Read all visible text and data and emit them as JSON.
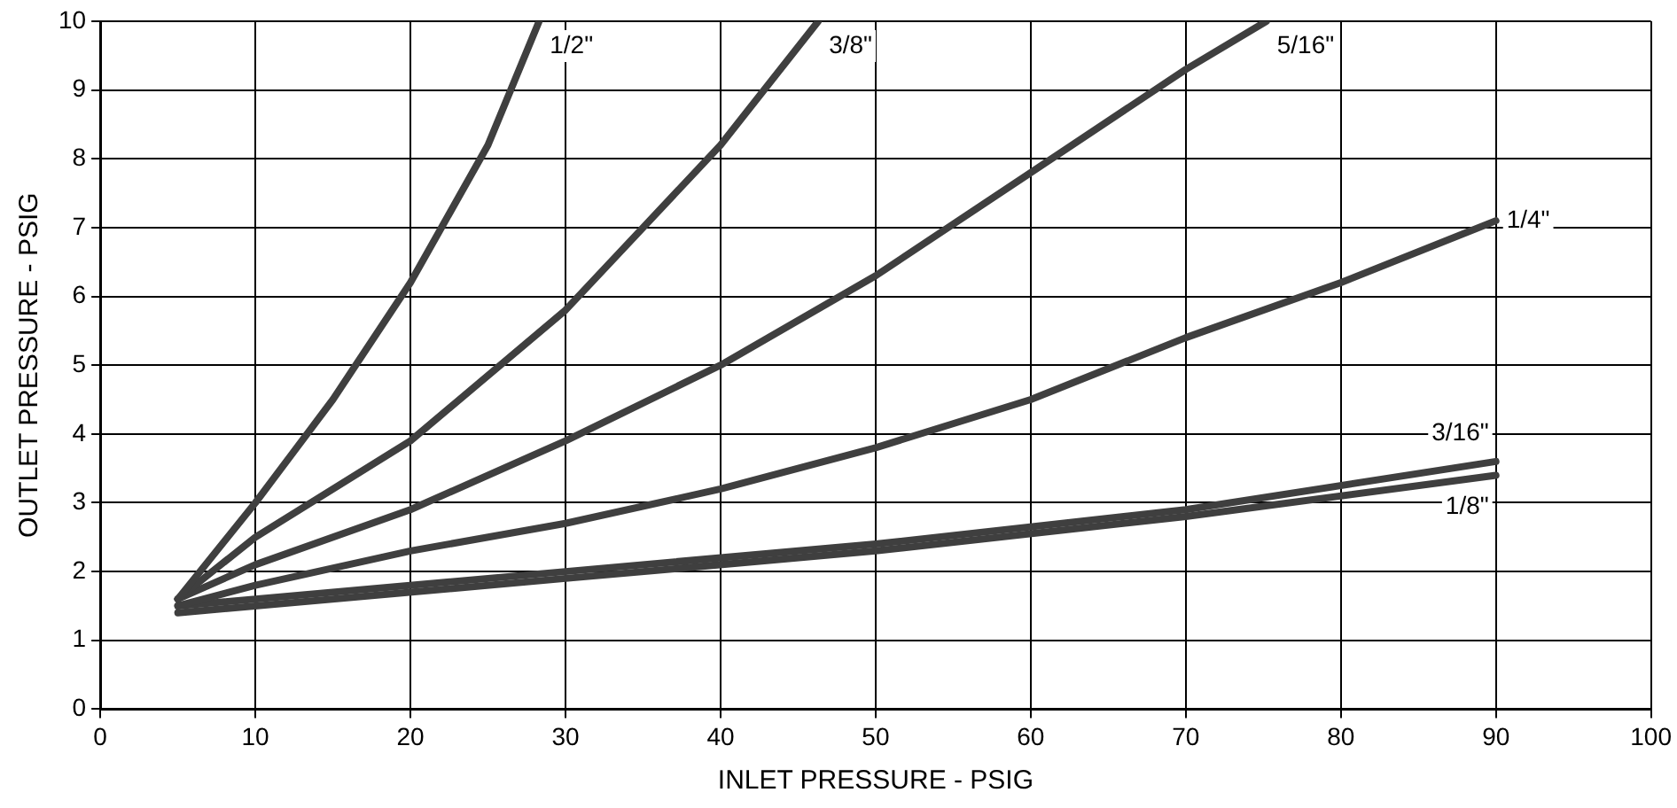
{
  "chart_data": {
    "type": "line",
    "xlabel": "INLET PRESSURE - PSIG",
    "ylabel": "OUTLET PRESSURE - PSIG",
    "xlim": [
      0,
      100
    ],
    "xticks": [
      0,
      10,
      20,
      30,
      40,
      50,
      60,
      70,
      80,
      90,
      100
    ],
    "ylim": [
      0,
      10
    ],
    "yticks": [
      0,
      1,
      2,
      3,
      4,
      5,
      6,
      7,
      8,
      9,
      10
    ],
    "grid": true,
    "legend": false,
    "marker": "none",
    "line_style": "solid",
    "series": [
      {
        "name": "1/2\"",
        "color": "#3f3f3f",
        "x": [
          5,
          10,
          15,
          20,
          25,
          28.3
        ],
        "values": [
          1.6,
          3.0,
          4.5,
          6.2,
          8.2,
          10
        ]
      },
      {
        "name": "3/8\"",
        "color": "#3f3f3f",
        "x": [
          5,
          10,
          20,
          30,
          40,
          46.3
        ],
        "values": [
          1.6,
          2.5,
          3.9,
          5.8,
          8.2,
          10
        ]
      },
      {
        "name": "5/16\"",
        "color": "#3f3f3f",
        "x": [
          5,
          10,
          20,
          30,
          40,
          50,
          60,
          70,
          75.2
        ],
        "values": [
          1.6,
          2.1,
          2.9,
          3.9,
          5.0,
          6.3,
          7.8,
          9.3,
          10
        ]
      },
      {
        "name": "1/4\"",
        "color": "#3f3f3f",
        "x": [
          5,
          10,
          20,
          30,
          40,
          50,
          60,
          70,
          80,
          90
        ],
        "values": [
          1.5,
          1.8,
          2.3,
          2.7,
          3.2,
          3.8,
          4.5,
          5.4,
          6.2,
          7.1
        ]
      },
      {
        "name": "3/16\"",
        "color": "#3f3f3f",
        "x": [
          5,
          30,
          50,
          70,
          90
        ],
        "values": [
          1.5,
          2.0,
          2.4,
          2.9,
          3.6
        ]
      },
      {
        "name": "1/8\"",
        "color": "#3f3f3f",
        "x": [
          5,
          30,
          50,
          70,
          90
        ],
        "values": [
          1.4,
          1.9,
          2.3,
          2.8,
          3.4
        ]
      }
    ]
  }
}
